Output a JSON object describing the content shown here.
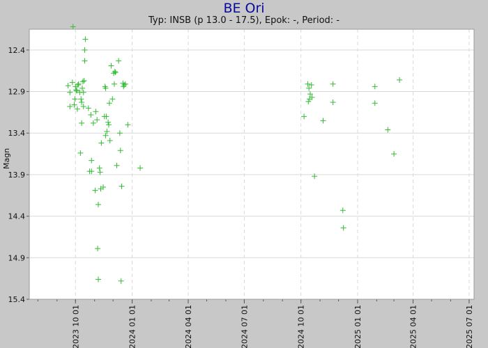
{
  "chart_data": {
    "type": "scatter",
    "title": "BE Ori",
    "subtitle": "Typ: INSB (p 13.0 - 17.5), Epok: -, Period: -",
    "xlabel": "",
    "ylabel": "Magn",
    "y_inverted": true,
    "ylim": [
      15.4,
      12.15
    ],
    "xlim": [
      "2023-07-18",
      "2025-07-09"
    ],
    "y_ticks": [
      "12.4",
      "12.9",
      "13.4",
      "13.9",
      "14.4",
      "14.9",
      "15.4"
    ],
    "x_ticks": [
      "2023 10 01",
      "2024 01 01",
      "2024 04 01",
      "2024 07 01",
      "2024 10 01",
      "2025 01 01",
      "2025 04 01",
      "2025 07 01"
    ],
    "grid": true,
    "marker": "+",
    "series_color": "#33bb33",
    "points": [
      {
        "x": "2023-09-19",
        "y": 12.83
      },
      {
        "x": "2023-09-22",
        "y": 12.91
      },
      {
        "x": "2023-09-22",
        "y": 13.08
      },
      {
        "x": "2023-09-26",
        "y": 12.79
      },
      {
        "x": "2023-09-27",
        "y": 12.12
      },
      {
        "x": "2023-09-29",
        "y": 13.06
      },
      {
        "x": "2023-09-30",
        "y": 12.99
      },
      {
        "x": "2023-10-01",
        "y": 12.84
      },
      {
        "x": "2023-10-02",
        "y": 12.88
      },
      {
        "x": "2023-10-03",
        "y": 12.89
      },
      {
        "x": "2023-10-04",
        "y": 13.11
      },
      {
        "x": "2023-10-05",
        "y": 12.82
      },
      {
        "x": "2023-10-06",
        "y": 12.81
      },
      {
        "x": "2023-10-08",
        "y": 12.91
      },
      {
        "x": "2023-10-09",
        "y": 13.64
      },
      {
        "x": "2023-10-10",
        "y": 12.99
      },
      {
        "x": "2023-10-11",
        "y": 13.03
      },
      {
        "x": "2023-10-11",
        "y": 13.28
      },
      {
        "x": "2023-10-12",
        "y": 12.86
      },
      {
        "x": "2023-10-13",
        "y": 12.78
      },
      {
        "x": "2023-10-14",
        "y": 12.91
      },
      {
        "x": "2023-10-14",
        "y": 13.08
      },
      {
        "x": "2023-10-15",
        "y": 12.77
      },
      {
        "x": "2023-10-16",
        "y": 12.4
      },
      {
        "x": "2023-10-16",
        "y": 12.53
      },
      {
        "x": "2023-10-17",
        "y": 12.27
      },
      {
        "x": "2023-10-22",
        "y": 13.1
      },
      {
        "x": "2023-10-24",
        "y": 13.86
      },
      {
        "x": "2023-10-26",
        "y": 13.18
      },
      {
        "x": "2023-10-27",
        "y": 13.73
      },
      {
        "x": "2023-10-27",
        "y": 13.86
      },
      {
        "x": "2023-10-30",
        "y": 13.28
      },
      {
        "x": "2023-11-02",
        "y": 14.09
      },
      {
        "x": "2023-11-03",
        "y": 13.14
      },
      {
        "x": "2023-11-05",
        "y": 13.24
      },
      {
        "x": "2023-11-06",
        "y": 14.79
      },
      {
        "x": "2023-11-07",
        "y": 14.26
      },
      {
        "x": "2023-11-07",
        "y": 15.16
      },
      {
        "x": "2023-11-09",
        "y": 13.82
      },
      {
        "x": "2023-11-10",
        "y": 13.87
      },
      {
        "x": "2023-11-11",
        "y": 14.07
      },
      {
        "x": "2023-11-12",
        "y": 13.52
      },
      {
        "x": "2023-11-15",
        "y": 14.05
      },
      {
        "x": "2023-11-17",
        "y": 13.2
      },
      {
        "x": "2023-11-18",
        "y": 12.84
      },
      {
        "x": "2023-11-19",
        "y": 12.86
      },
      {
        "x": "2023-11-19",
        "y": 13.43
      },
      {
        "x": "2023-11-20",
        "y": 13.2
      },
      {
        "x": "2023-11-21",
        "y": 13.38
      },
      {
        "x": "2023-11-23",
        "y": 13.27
      },
      {
        "x": "2023-11-24",
        "y": 13.3
      },
      {
        "x": "2023-11-25",
        "y": 13.04
      },
      {
        "x": "2023-11-26",
        "y": 13.49
      },
      {
        "x": "2023-11-28",
        "y": 12.59
      },
      {
        "x": "2023-11-30",
        "y": 12.99
      },
      {
        "x": "2023-12-02",
        "y": 12.68
      },
      {
        "x": "2023-12-03",
        "y": 12.81
      },
      {
        "x": "2023-12-04",
        "y": 12.66
      },
      {
        "x": "2023-12-05",
        "y": 12.67
      },
      {
        "x": "2023-12-07",
        "y": 13.79
      },
      {
        "x": "2023-12-10",
        "y": 12.53
      },
      {
        "x": "2023-12-12",
        "y": 13.4
      },
      {
        "x": "2023-12-13",
        "y": 13.61
      },
      {
        "x": "2023-12-14",
        "y": 15.18
      },
      {
        "x": "2023-12-15",
        "y": 14.04
      },
      {
        "x": "2023-12-17",
        "y": 12.8
      },
      {
        "x": "2023-12-18",
        "y": 12.84
      },
      {
        "x": "2023-12-19",
        "y": 12.82
      },
      {
        "x": "2023-12-21",
        "y": 12.81
      },
      {
        "x": "2023-12-25",
        "y": 13.3
      },
      {
        "x": "2024-01-14",
        "y": 13.82
      },
      {
        "x": "2024-10-06",
        "y": 13.2
      },
      {
        "x": "2024-10-12",
        "y": 12.81
      },
      {
        "x": "2024-10-13",
        "y": 13.02
      },
      {
        "x": "2024-10-14",
        "y": 12.86
      },
      {
        "x": "2024-10-15",
        "y": 12.99
      },
      {
        "x": "2024-10-16",
        "y": 12.93
      },
      {
        "x": "2024-10-18",
        "y": 12.82
      },
      {
        "x": "2024-10-19",
        "y": 12.97
      },
      {
        "x": "2024-10-23",
        "y": 13.92
      },
      {
        "x": "2024-11-06",
        "y": 13.25
      },
      {
        "x": "2024-11-22",
        "y": 13.03
      },
      {
        "x": "2024-11-22",
        "y": 12.81
      },
      {
        "x": "2024-12-08",
        "y": 14.33
      },
      {
        "x": "2024-12-09",
        "y": 14.54
      },
      {
        "x": "2025-01-29",
        "y": 12.84
      },
      {
        "x": "2025-01-29",
        "y": 13.04
      },
      {
        "x": "2025-02-19",
        "y": 13.36
      },
      {
        "x": "2025-03-01",
        "y": 13.65
      },
      {
        "x": "2025-03-10",
        "y": 12.76
      }
    ]
  }
}
